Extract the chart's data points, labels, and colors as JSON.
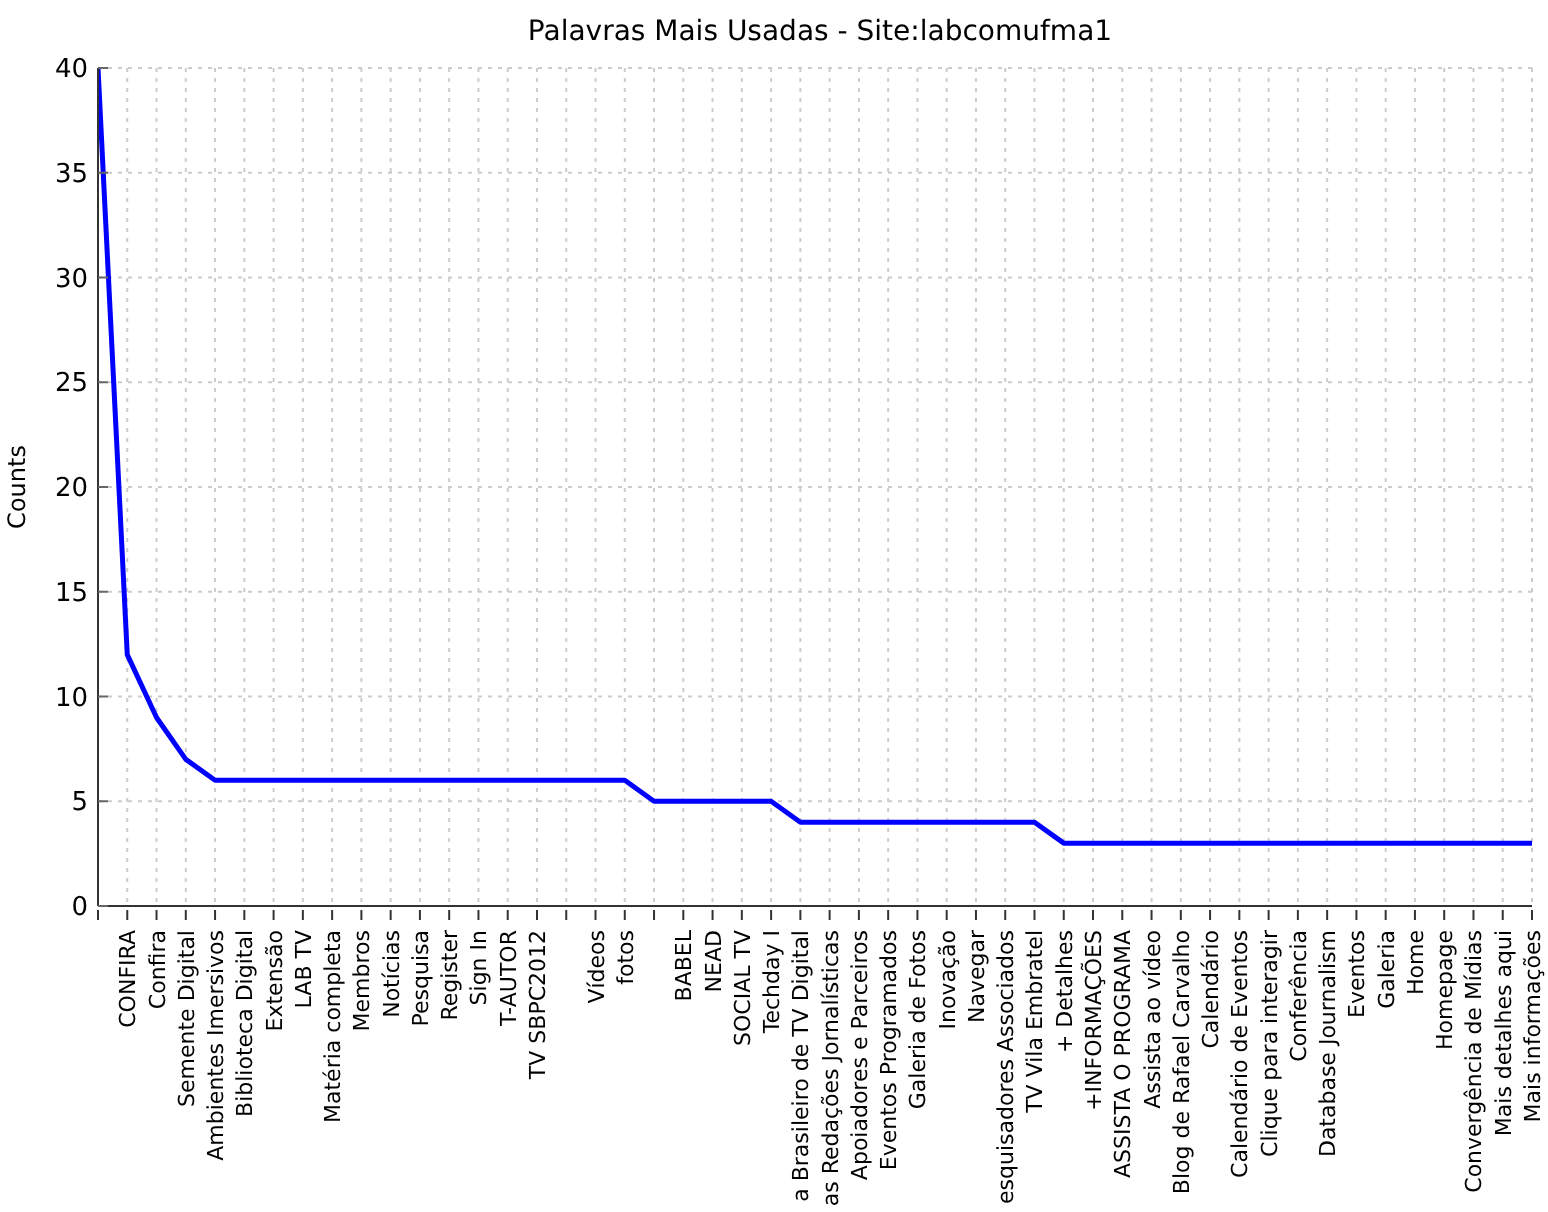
{
  "chart_data": {
    "type": "line",
    "title": "Palavras Mais Usadas - Site:labcomufma1",
    "ylabel": "Counts",
    "categories": [
      null,
      "CONFIRA",
      "Confira",
      "Semente Digital",
      "Ambientes Imersivos",
      "Biblioteca Digital",
      "Extensão",
      "LAB TV",
      "Matéria completa",
      "Membros",
      "Notícias",
      "Pesquisa",
      "Register",
      "Sign In",
      "T-AUTOR",
      "TV SBPC2012",
      null,
      "Vídeos",
      "fotos",
      null,
      "BABEL",
      "NEAD",
      "SOCIAL TV",
      "Techday I",
      "a Brasileiro de TV Digital",
      "as Redações Jornalísticas",
      "Apoiadores e Parceiros",
      "Eventos Programados",
      "Galeria de Fotos",
      "Inovação",
      "Navegar",
      "esquisadores Associados",
      "TV Vila Embratel",
      "+ Detalhes",
      "+INFORMAÇÕES",
      "ASSISTA O PROGRAMA",
      "Assista ao vídeo",
      "Blog de Rafael Carvalho",
      "Calendário",
      "Calendário de Eventos",
      "Clique  para interagir",
      "Conferência",
      "Database Journalism",
      "Eventos",
      "Galeria",
      "Home",
      "Homepage",
      "Convergência de Mídias",
      "Mais detalhes aqui",
      "Mais informações"
    ],
    "series": [
      {
        "color": "#0000ff",
        "values": [
          40,
          12,
          9,
          7,
          6,
          6,
          6,
          6,
          6,
          6,
          6,
          6,
          6,
          6,
          6,
          6,
          6,
          6,
          6,
          5,
          5,
          5,
          5,
          5,
          4,
          4,
          4,
          4,
          4,
          4,
          4,
          4,
          4,
          3,
          3,
          3,
          3,
          3,
          3,
          3,
          3,
          3,
          3,
          3,
          3,
          3,
          3,
          3,
          3,
          3
        ]
      }
    ],
    "ylim": [
      0,
      40
    ],
    "yticks": [
      0,
      5,
      10,
      15,
      20,
      25,
      30,
      35,
      40
    ],
    "grid": true,
    "legend": false,
    "marker": "none",
    "line_style": "solid"
  }
}
